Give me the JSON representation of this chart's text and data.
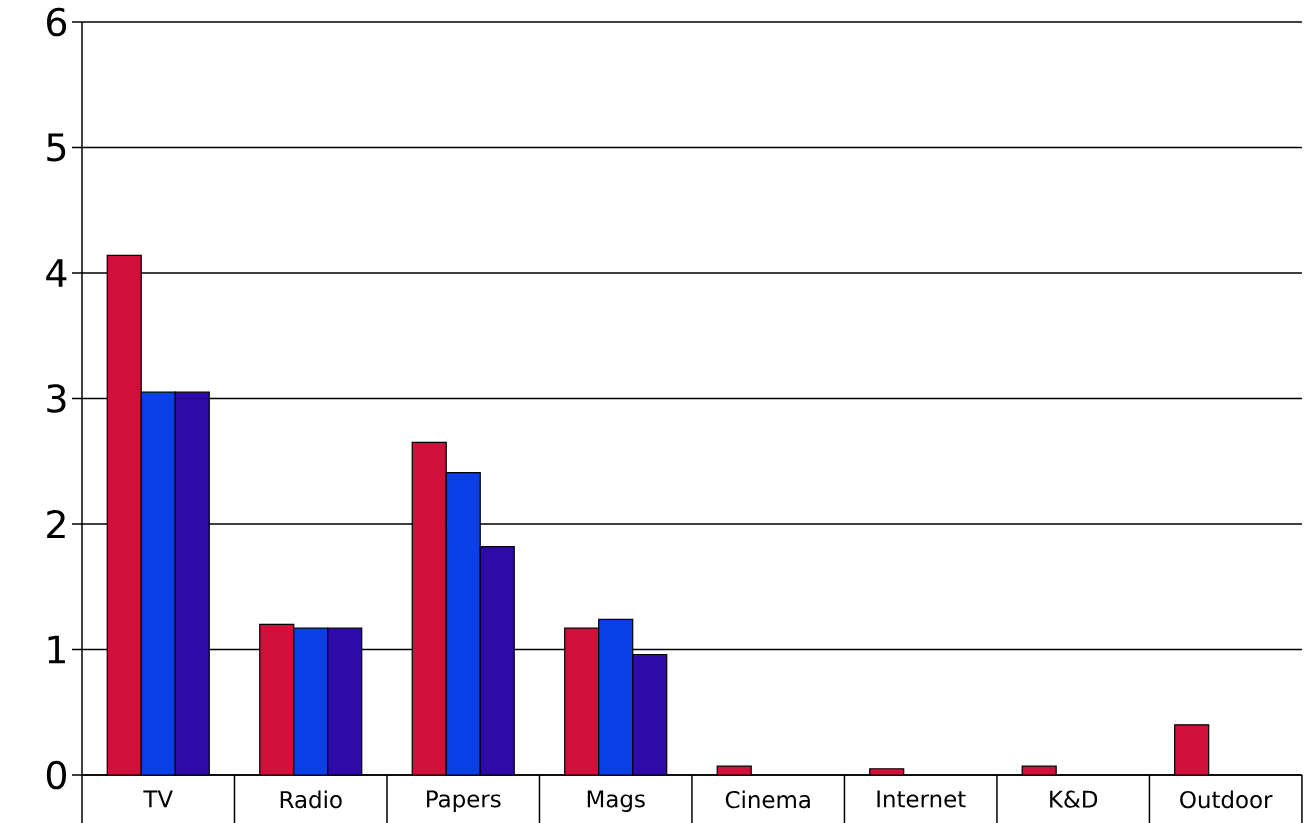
{
  "chart_data": {
    "type": "bar",
    "categories": [
      "TV",
      "Radio",
      "Papers",
      "Mags",
      "Cinema",
      "Internet",
      "K&D",
      "Outdoor"
    ],
    "series": [
      {
        "color": "#d0103a",
        "values": [
          4.14,
          1.2,
          2.65,
          1.17,
          0.07,
          0.05,
          0.07,
          0.4
        ]
      },
      {
        "color": "#0a3fe6",
        "values": [
          3.05,
          1.17,
          2.41,
          1.24,
          null,
          null,
          null,
          null
        ]
      },
      {
        "color": "#2e0aa8",
        "values": [
          3.05,
          1.17,
          1.82,
          0.96,
          null,
          null,
          null,
          null
        ]
      }
    ],
    "ylim": [
      0,
      6
    ],
    "yticks": [
      0,
      1,
      2,
      3,
      4,
      5,
      6
    ],
    "grid": "y"
  }
}
